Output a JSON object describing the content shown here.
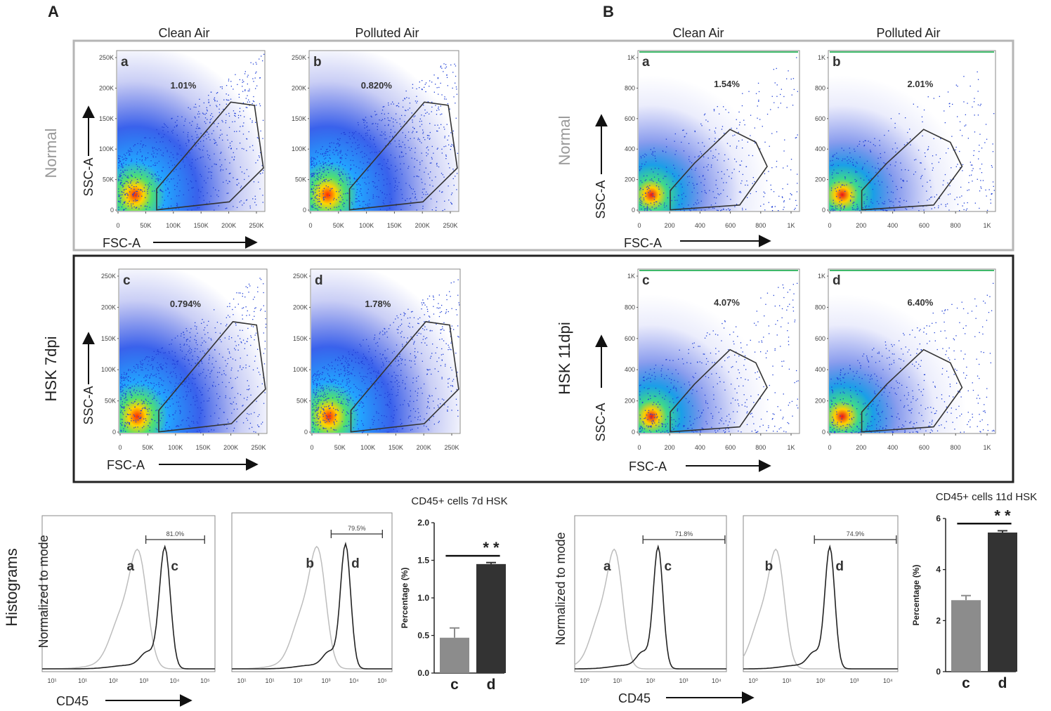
{
  "figure": {
    "section_a": "A",
    "section_b": "B",
    "col_clean": "Clean Air",
    "col_polluted": "Polluted Air",
    "row_normal": "Normal",
    "row_hsk7": "HSK 7dpi",
    "row_hsk11": "HSK 11dpi",
    "row_hist": "Histograms",
    "ssc_label": "SSC-A",
    "fsc_label": "FSC-A",
    "cd45_label": "CD45",
    "norm_label": "Normalized to mode"
  },
  "scatter_a": {
    "y_ticks": [
      "250K",
      "200K",
      "150K",
      "100K",
      "50K",
      "0"
    ],
    "x_ticks": [
      "0",
      "50K",
      "100K",
      "150K",
      "200K",
      "250K"
    ],
    "panels": [
      {
        "letter": "a",
        "percent": "1.01%"
      },
      {
        "letter": "b",
        "percent": "0.820%"
      },
      {
        "letter": "c",
        "percent": "0.794%"
      },
      {
        "letter": "d",
        "percent": "1.78%"
      }
    ]
  },
  "scatter_b": {
    "y_ticks": [
      "1K",
      "800",
      "600",
      "400",
      "200",
      "0"
    ],
    "x_ticks": [
      "0",
      "200",
      "400",
      "600",
      "800",
      "1K"
    ],
    "panels": [
      {
        "letter": "a",
        "percent": "1.54%"
      },
      {
        "letter": "b",
        "percent": "2.01%"
      },
      {
        "letter": "c",
        "percent": "4.07%"
      },
      {
        "letter": "d",
        "percent": "6.40%"
      }
    ]
  },
  "histograms": {
    "x_ticks": [
      "10¹",
      "10¹",
      "10²",
      "10³",
      "10⁴",
      "10⁵"
    ],
    "x_ticks_b": [
      "10⁰",
      "10¹",
      "10²",
      "10³",
      "10⁴"
    ],
    "panels": [
      {
        "left": "a",
        "right": "c",
        "percent": "81.0%"
      },
      {
        "left": "b",
        "right": "d",
        "percent": "79.5%"
      },
      {
        "left": "a",
        "right": "c",
        "percent": "71.8%"
      },
      {
        "left": "b",
        "right": "d",
        "percent": "74.9%"
      }
    ]
  },
  "chart_data": [
    {
      "type": "bar",
      "title": "CD45+ cells 7d HSK",
      "categories": [
        "c",
        "d"
      ],
      "values": [
        0.47,
        1.45
      ],
      "errors": [
        0.13,
        0.02
      ],
      "colors": [
        "#8c8c8c",
        "#333333"
      ],
      "ylabel": "Percentage (%)",
      "ylim": [
        0,
        2.0
      ],
      "y_ticks": [
        "2.0",
        "1.5",
        "1.0",
        "0.5",
        "0.0"
      ],
      "significance": "* *"
    },
    {
      "type": "bar",
      "title": "CD45+ cells 11d HSK",
      "categories": [
        "c",
        "d"
      ],
      "values": [
        2.8,
        5.45
      ],
      "errors": [
        0.18,
        0.07
      ],
      "colors": [
        "#8c8c8c",
        "#333333"
      ],
      "ylabel": "Percentage (%)",
      "ylim": [
        0,
        6
      ],
      "y_ticks": [
        "6",
        "4",
        "2",
        "0"
      ],
      "significance": "* *"
    }
  ]
}
